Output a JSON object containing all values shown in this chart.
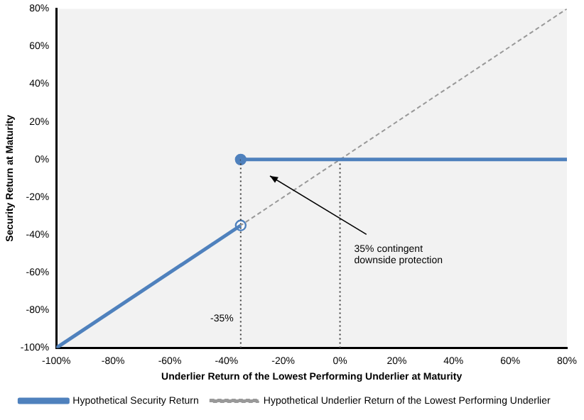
{
  "chart_data": {
    "type": "line",
    "xlabel": "Underlier Return of the Lowest Performing Underlier at Maturity",
    "ylabel": "Security Return at Maturity",
    "xlim": [
      -100,
      80
    ],
    "ylim": [
      -100,
      80
    ],
    "xticks": [
      {
        "value": -100,
        "label": "-100%"
      },
      {
        "value": -80,
        "label": "-80%"
      },
      {
        "value": -60,
        "label": "-60%"
      },
      {
        "value": -40,
        "label": "-40%"
      },
      {
        "value": -20,
        "label": "-20%"
      },
      {
        "value": 0,
        "label": "0%"
      },
      {
        "value": 20,
        "label": "20%"
      },
      {
        "value": 40,
        "label": "40%"
      },
      {
        "value": 60,
        "label": "60%"
      },
      {
        "value": 80,
        "label": "80%"
      }
    ],
    "yticks": [
      {
        "value": -100,
        "label": "-100%"
      },
      {
        "value": -80,
        "label": "-80%"
      },
      {
        "value": -60,
        "label": "-60%"
      },
      {
        "value": -40,
        "label": "-40%"
      },
      {
        "value": -20,
        "label": "-20%"
      },
      {
        "value": 0,
        "label": "0%"
      },
      {
        "value": 20,
        "label": "20%"
      },
      {
        "value": 40,
        "label": "40%"
      },
      {
        "value": 60,
        "label": "60%"
      },
      {
        "value": 80,
        "label": "80%"
      }
    ],
    "grid": false,
    "legend": "bottom",
    "series": [
      {
        "name": "Hypothetical Security Return",
        "color": "#4f81bd",
        "x": [
          -100,
          -35
        ],
        "values": [
          -100,
          -35
        ],
        "marker": "none",
        "line_style": "solid"
      },
      {
        "type": "line",
        "color": "#4f81bd",
        "x": [
          -35,
          80
        ],
        "values": [
          0,
          0
        ],
        "marker": "none",
        "line_style": "solid"
      },
      {
        "name": "Hypothetical Underlier Return of the Lowest Performing Underlier",
        "color": "#999999",
        "x": [
          -100,
          80
        ],
        "values": [
          -100,
          80
        ],
        "marker": "none",
        "line_style": "dashed"
      },
      {
        "type": "line",
        "color": "#404040",
        "x": [
          -35,
          -35
        ],
        "values": [
          -100,
          0
        ],
        "marker": "none",
        "line_style": "dotted"
      },
      {
        "type": "line",
        "color": "#404040",
        "x": [
          0,
          0
        ],
        "values": [
          -100,
          0
        ],
        "marker": "none",
        "line_style": "dotted"
      },
      {
        "type": "scatter",
        "color": "#4f81bd",
        "colors": [
          "#ffffff",
          "#4f81bd"
        ],
        "x": [
          -35,
          -35
        ],
        "values": [
          -35,
          0
        ],
        "marker": "circle"
      }
    ],
    "annotations": [
      {
        "text": "-35%",
        "x": -35,
        "y": -82
      },
      "35% contingent downside protection"
    ]
  }
}
